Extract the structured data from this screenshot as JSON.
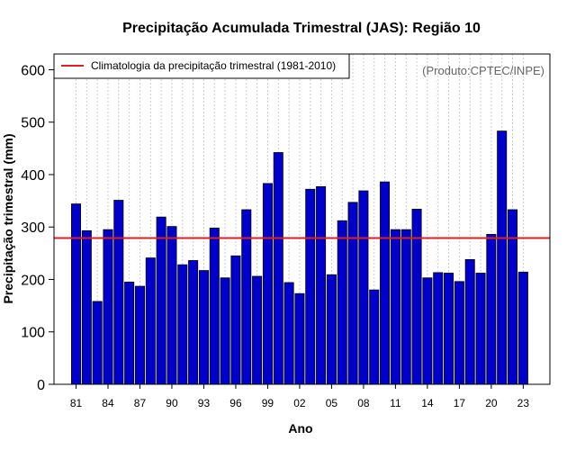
{
  "colors": {
    "bar": "#0000cc",
    "bar_stroke": "#000000",
    "climatology": "#e02020",
    "grid": "#cccccc",
    "credit": "#666666"
  },
  "chart_data": {
    "type": "bar",
    "title": "Precipitação Acumulada Trimestral (JAS): Região 10",
    "xlabel": "Ano",
    "ylabel": "Precipitação trimestral (mm)",
    "ylim": [
      0,
      630
    ],
    "yticks": [
      0,
      100,
      200,
      300,
      400,
      500,
      600
    ],
    "xtick_labels": [
      "81",
      "84",
      "87",
      "90",
      "93",
      "96",
      "99",
      "02",
      "05",
      "08",
      "11",
      "14",
      "17",
      "20",
      "23"
    ],
    "grid": "vertical dotted",
    "years": [
      1981,
      1982,
      1983,
      1984,
      1985,
      1986,
      1987,
      1988,
      1989,
      1990,
      1991,
      1992,
      1993,
      1994,
      1995,
      1996,
      1997,
      1998,
      1999,
      2000,
      2001,
      2002,
      2003,
      2004,
      2005,
      2006,
      2007,
      2008,
      2009,
      2010,
      2011,
      2012,
      2013,
      2014,
      2015,
      2016,
      2017,
      2018,
      2019,
      2020,
      2021,
      2022,
      2023
    ],
    "values": [
      344,
      293,
      158,
      295,
      351,
      195,
      187,
      241,
      319,
      301,
      228,
      236,
      217,
      298,
      203,
      245,
      333,
      206,
      383,
      442,
      194,
      173,
      372,
      377,
      209,
      312,
      347,
      369,
      180,
      386,
      295,
      295,
      334,
      203,
      213,
      212,
      196,
      238,
      212,
      286,
      483,
      333,
      214
    ],
    "climatology": {
      "label": "Climatologia da precipitação trimestral (1981-2010)",
      "value": 279
    },
    "legend": "top-left",
    "credit": "(Produto:CPTEC/INPE)"
  }
}
